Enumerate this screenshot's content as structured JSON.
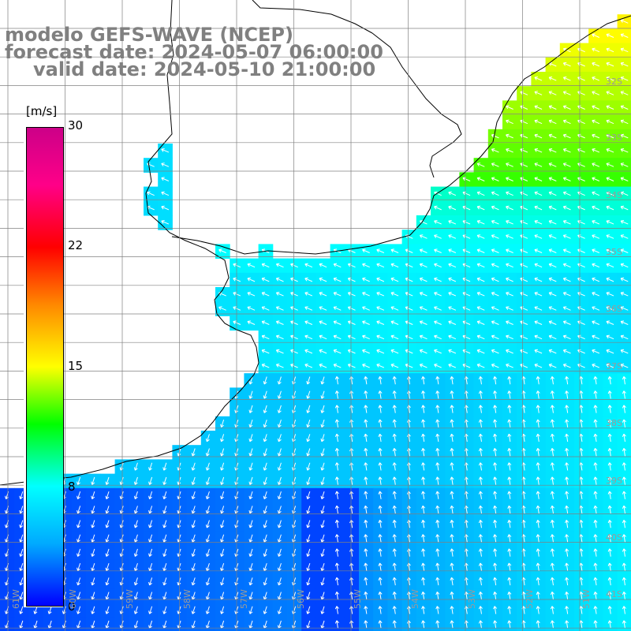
{
  "title": {
    "model": "modelo GEFS-WAVE (NCEP)",
    "forecast": "forecast date: 2024-05-07 06:00:00",
    "valid": "valid date: 2024-05-10 21:00:00"
  },
  "colorbar": {
    "unit": "[m/s]",
    "ticks": [
      "30",
      "22",
      "15",
      "8",
      "0"
    ],
    "colors": [
      "#0000ff",
      "#00aaff",
      "#00ffff",
      "#00ff00",
      "#ffff00",
      "#ff8800",
      "#ff0000",
      "#ff0088",
      "#cc0088"
    ]
  },
  "grid": {
    "lat_labels": [
      "32S",
      "33S",
      "34S",
      "35S",
      "36S",
      "37S",
      "38S",
      "39S",
      "40S",
      "41S"
    ],
    "lon_labels": [
      "61W",
      "60W",
      "59W",
      "58W",
      "57W",
      "56W",
      "55W",
      "54W",
      "53W",
      "52W",
      "51W"
    ]
  },
  "colors": {
    "land": "#ffffff",
    "coast": "#000000",
    "grid": "#808080",
    "arrows": "#ffffff"
  }
}
